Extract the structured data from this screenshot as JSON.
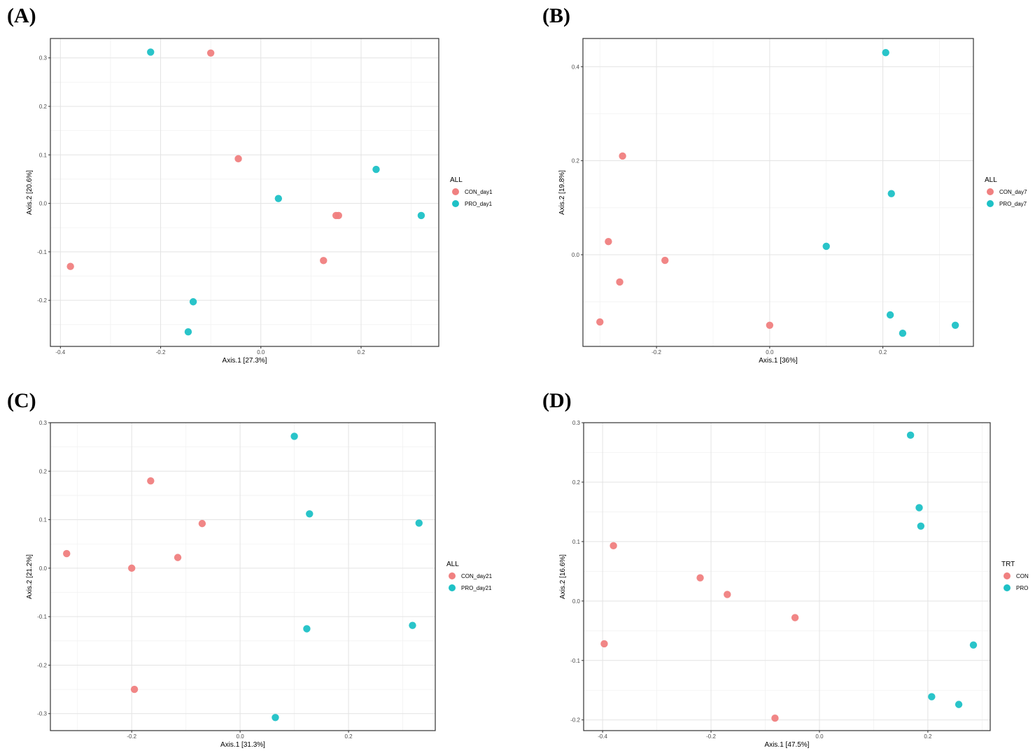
{
  "chart_data": [
    {
      "type": "scatter",
      "panel": "(A)",
      "xlabel": "Axis.1   [27.3%]",
      "ylabel": "Axis.2   [20.6%]",
      "xlim": [
        -0.42,
        0.355
      ],
      "ylim": [
        -0.295,
        0.34
      ],
      "xticks": [
        -0.4,
        -0.2,
        0.0,
        0.2
      ],
      "xtick_labels": [
        "-0.4",
        "-0.2",
        "0.0",
        "0.2"
      ],
      "yticks": [
        -0.2,
        -0.1,
        0.0,
        0.1,
        0.2,
        0.3
      ],
      "ytick_labels": [
        "-0.2",
        "-0.1",
        "0.0",
        "0.1",
        "0.2",
        "0.3"
      ],
      "legend_title": "ALL",
      "series": [
        {
          "name": "CON_day1",
          "color": "#f08080",
          "points": [
            [
              -0.38,
              -0.13
            ],
            [
              -0.1,
              0.31
            ],
            [
              -0.045,
              0.092
            ],
            [
              0.15,
              -0.025
            ],
            [
              0.155,
              -0.025
            ],
            [
              0.125,
              -0.118
            ]
          ]
        },
        {
          "name": "PRO_day1",
          "color": "#1ec1c6",
          "points": [
            [
              -0.22,
              0.312
            ],
            [
              0.035,
              0.01
            ],
            [
              0.23,
              0.07
            ],
            [
              0.32,
              -0.025
            ],
            [
              -0.135,
              -0.203
            ],
            [
              -0.145,
              -0.265
            ]
          ]
        }
      ]
    },
    {
      "type": "scatter",
      "panel": "(B)",
      "xlabel": "Axis.1   [36%]",
      "ylabel": "Axis.2   [19.8%]",
      "xlim": [
        -0.33,
        0.36
      ],
      "ylim": [
        -0.195,
        0.46
      ],
      "xticks": [
        -0.2,
        0.0,
        0.2
      ],
      "xtick_labels": [
        "-0.2",
        "0.0",
        "0.2"
      ],
      "yticks": [
        0.0,
        0.2,
        0.4
      ],
      "ytick_labels": [
        "0.0",
        "0.2",
        "0.4"
      ],
      "legend_title": "ALL",
      "series": [
        {
          "name": "CON_day7",
          "color": "#f08080",
          "points": [
            [
              -0.26,
              0.21
            ],
            [
              -0.285,
              0.028
            ],
            [
              -0.185,
              -0.012
            ],
            [
              -0.265,
              -0.058
            ],
            [
              -0.3,
              -0.143
            ],
            [
              0.0,
              -0.15
            ]
          ]
        },
        {
          "name": "PRO_day7",
          "color": "#1ec1c6",
          "points": [
            [
              0.205,
              0.43
            ],
            [
              0.215,
              0.13
            ],
            [
              0.1,
              0.018
            ],
            [
              0.213,
              -0.128
            ],
            [
              0.235,
              -0.167
            ],
            [
              0.328,
              -0.15
            ]
          ]
        }
      ]
    },
    {
      "type": "scatter",
      "panel": "(C)",
      "xlabel": "Axis.1   [31.3%]",
      "ylabel": "Axis.2   [21.2%]",
      "xlim": [
        -0.35,
        0.36
      ],
      "ylim": [
        -0.335,
        0.3
      ],
      "xticks": [
        -0.2,
        0.0,
        0.2
      ],
      "xtick_labels": [
        "-0.2",
        "0.0",
        "0.2"
      ],
      "yticks": [
        -0.3,
        -0.2,
        -0.1,
        0.0,
        0.1,
        0.2,
        0.3
      ],
      "ytick_labels": [
        "-0.3",
        "-0.2",
        "-0.1",
        "0.0",
        "0.1",
        "0.2",
        "0.3"
      ],
      "legend_title": "ALL",
      "series": [
        {
          "name": "CON_day21",
          "color": "#f08080",
          "points": [
            [
              -0.32,
              0.03
            ],
            [
              -0.2,
              0.0
            ],
            [
              -0.165,
              0.18
            ],
            [
              -0.115,
              0.022
            ],
            [
              -0.07,
              0.092
            ],
            [
              -0.195,
              -0.25
            ]
          ]
        },
        {
          "name": "PRO_day21",
          "color": "#1ec1c6",
          "points": [
            [
              0.1,
              0.272
            ],
            [
              0.128,
              0.112
            ],
            [
              0.33,
              0.093
            ],
            [
              0.123,
              -0.125
            ],
            [
              0.318,
              -0.118
            ],
            [
              0.065,
              -0.308
            ]
          ]
        }
      ]
    },
    {
      "type": "scatter",
      "panel": "(D)",
      "xlabel": "Axis.1   [47.5%]",
      "ylabel": "Axis.2   [16.6%]",
      "xlim": [
        -0.435,
        0.315
      ],
      "ylim": [
        -0.218,
        0.3
      ],
      "xticks": [
        -0.4,
        -0.2,
        0.0,
        0.2
      ],
      "xtick_labels": [
        "-0.4",
        "-0.2",
        "0.0",
        "0.2"
      ],
      "yticks": [
        -0.2,
        -0.1,
        0.0,
        0.1,
        0.2,
        0.3
      ],
      "ytick_labels": [
        "-0.2",
        "-0.1",
        "0.0",
        "0.1",
        "0.2",
        "0.3"
      ],
      "legend_title": "TRT",
      "series": [
        {
          "name": "CON",
          "color": "#f08080",
          "points": [
            [
              -0.38,
              0.093
            ],
            [
              -0.22,
              0.039
            ],
            [
              -0.17,
              0.011
            ],
            [
              -0.045,
              -0.028
            ],
            [
              -0.397,
              -0.072
            ],
            [
              -0.082,
              -0.197
            ]
          ]
        },
        {
          "name": "PRO",
          "color": "#1ec1c6",
          "points": [
            [
              0.168,
              0.279
            ],
            [
              0.184,
              0.157
            ],
            [
              0.187,
              0.126
            ],
            [
              0.284,
              -0.074
            ],
            [
              0.207,
              -0.161
            ],
            [
              0.257,
              -0.174
            ]
          ]
        }
      ]
    }
  ]
}
